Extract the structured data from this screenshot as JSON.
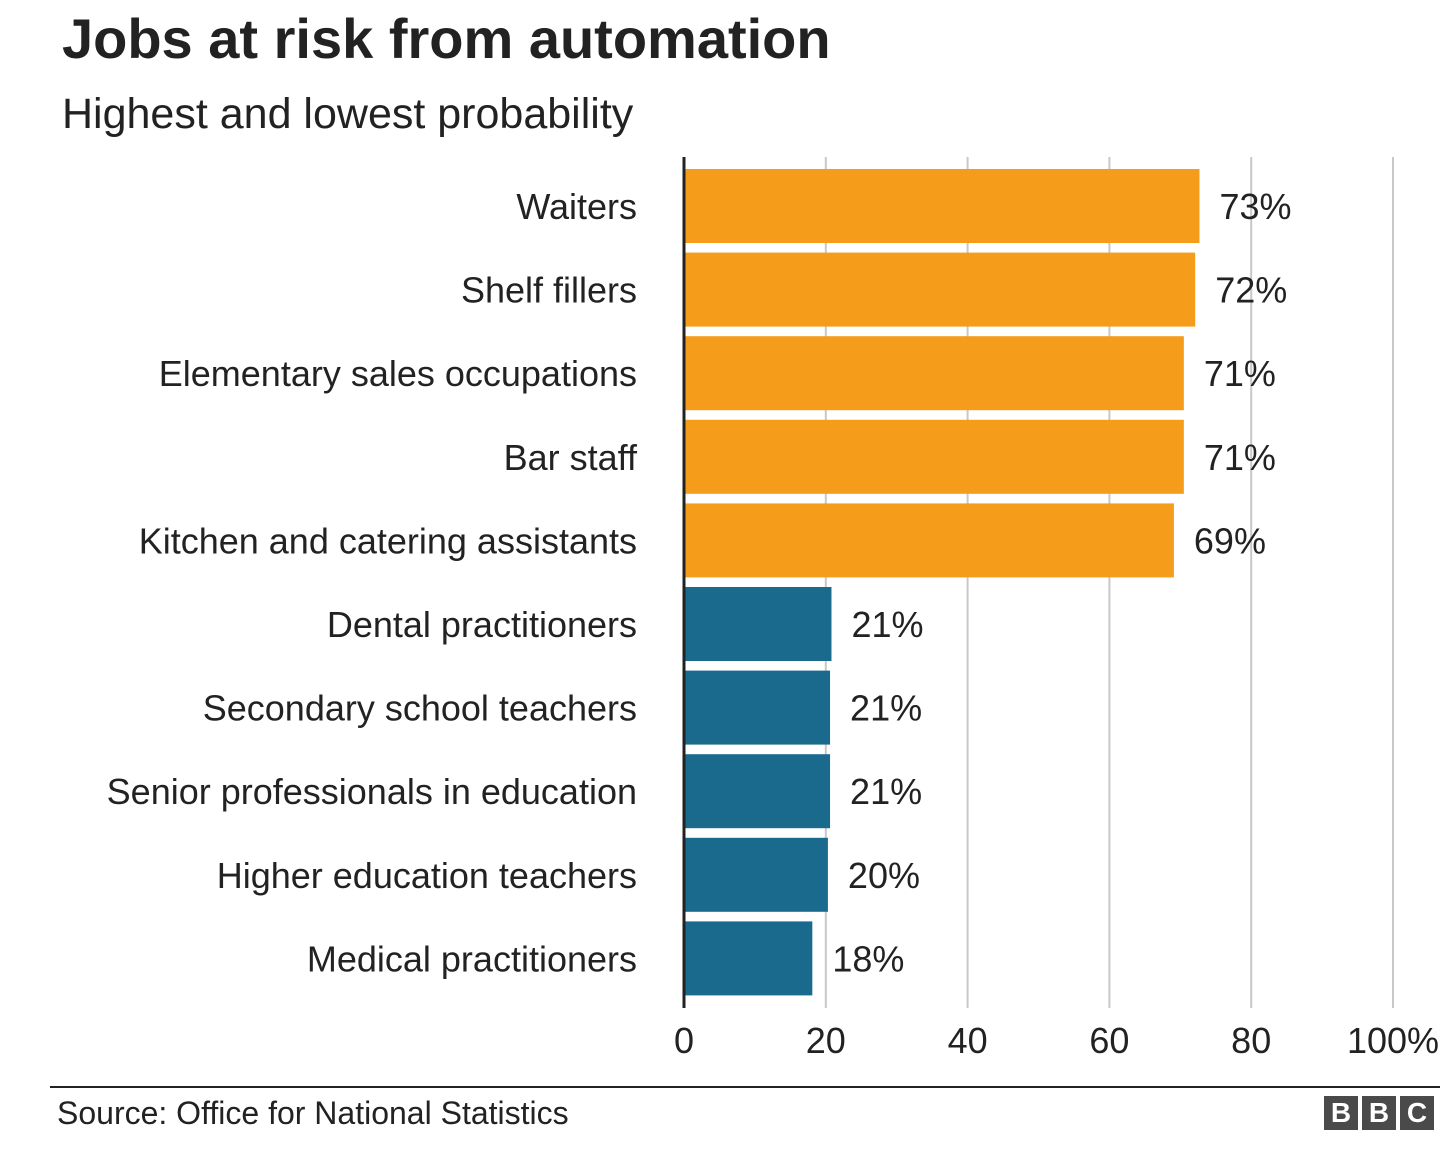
{
  "chart_data": {
    "type": "bar",
    "orientation": "horizontal",
    "title": "Jobs at risk from automation",
    "subtitle": "Highest and lowest probability",
    "categories": [
      "Waiters",
      "Shelf fillers",
      "Elementary sales occupations",
      "Bar staff",
      "Kitchen and catering assistants",
      "Dental practitioners",
      "Secondary school teachers",
      "Senior professionals in education",
      "Higher education teachers",
      "Medical practitioners"
    ],
    "values": [
      72.7,
      72.1,
      70.5,
      70.5,
      69.1,
      20.8,
      20.6,
      20.6,
      20.3,
      18.1
    ],
    "data_labels": [
      "73%",
      "72%",
      "71%",
      "71%",
      "69%",
      "21%",
      "21%",
      "21%",
      "20%",
      "18%"
    ],
    "groups": [
      "highest",
      "highest",
      "highest",
      "highest",
      "highest",
      "lowest",
      "lowest",
      "lowest",
      "lowest",
      "lowest"
    ],
    "group_colors": {
      "highest": "#f59c1a",
      "lowest": "#1a6a8e"
    },
    "xlim": [
      0,
      100
    ],
    "xticks": [
      0,
      20,
      40,
      60,
      80,
      100
    ],
    "xtick_labels": [
      "0",
      "20",
      "40",
      "60",
      "80",
      "100%"
    ],
    "grid": true,
    "xlabel": "",
    "ylabel": ""
  },
  "footer": {
    "source": "Source: Office for National Statistics",
    "logo_letters": [
      "B",
      "B",
      "C"
    ]
  }
}
